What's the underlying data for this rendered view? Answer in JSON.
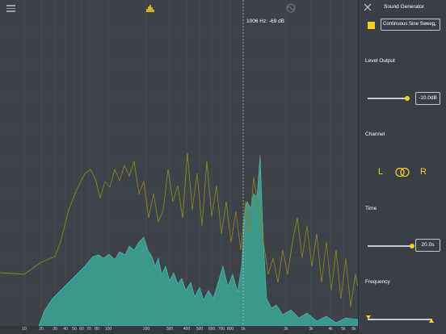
{
  "graph": {
    "cursor_readout": "1006 Hz: -69 dB",
    "x_ticks": [
      "10",
      "20",
      "30",
      "40",
      "50",
      "60",
      "70",
      "80",
      "100",
      "200",
      "300",
      "400",
      "500",
      "600",
      "700",
      "800",
      "1k",
      "2k",
      "3k",
      "4k",
      "5k",
      "6k"
    ],
    "colors": {
      "peak_trace": "#8a8226",
      "spectrum_fill": "#3aa898",
      "cursor": "#c8c8c8"
    }
  },
  "panel": {
    "title": "Sound Generator",
    "mode": "Continuous Sine Sweep",
    "level_output_label": "Level Output",
    "level_output_value": "-10.0dB",
    "channel_label": "Channel",
    "channel_left": "L",
    "channel_right": "R",
    "time_label": "Time",
    "time_value": "20.0s",
    "frequency_label": "Frequency",
    "accent_color": "#f3d21a"
  },
  "icons": [
    "menu-icon",
    "spectrum-icon",
    "waveform-icon",
    "close-icon",
    "chevron-down-icon",
    "linked-rings-icon"
  ]
}
